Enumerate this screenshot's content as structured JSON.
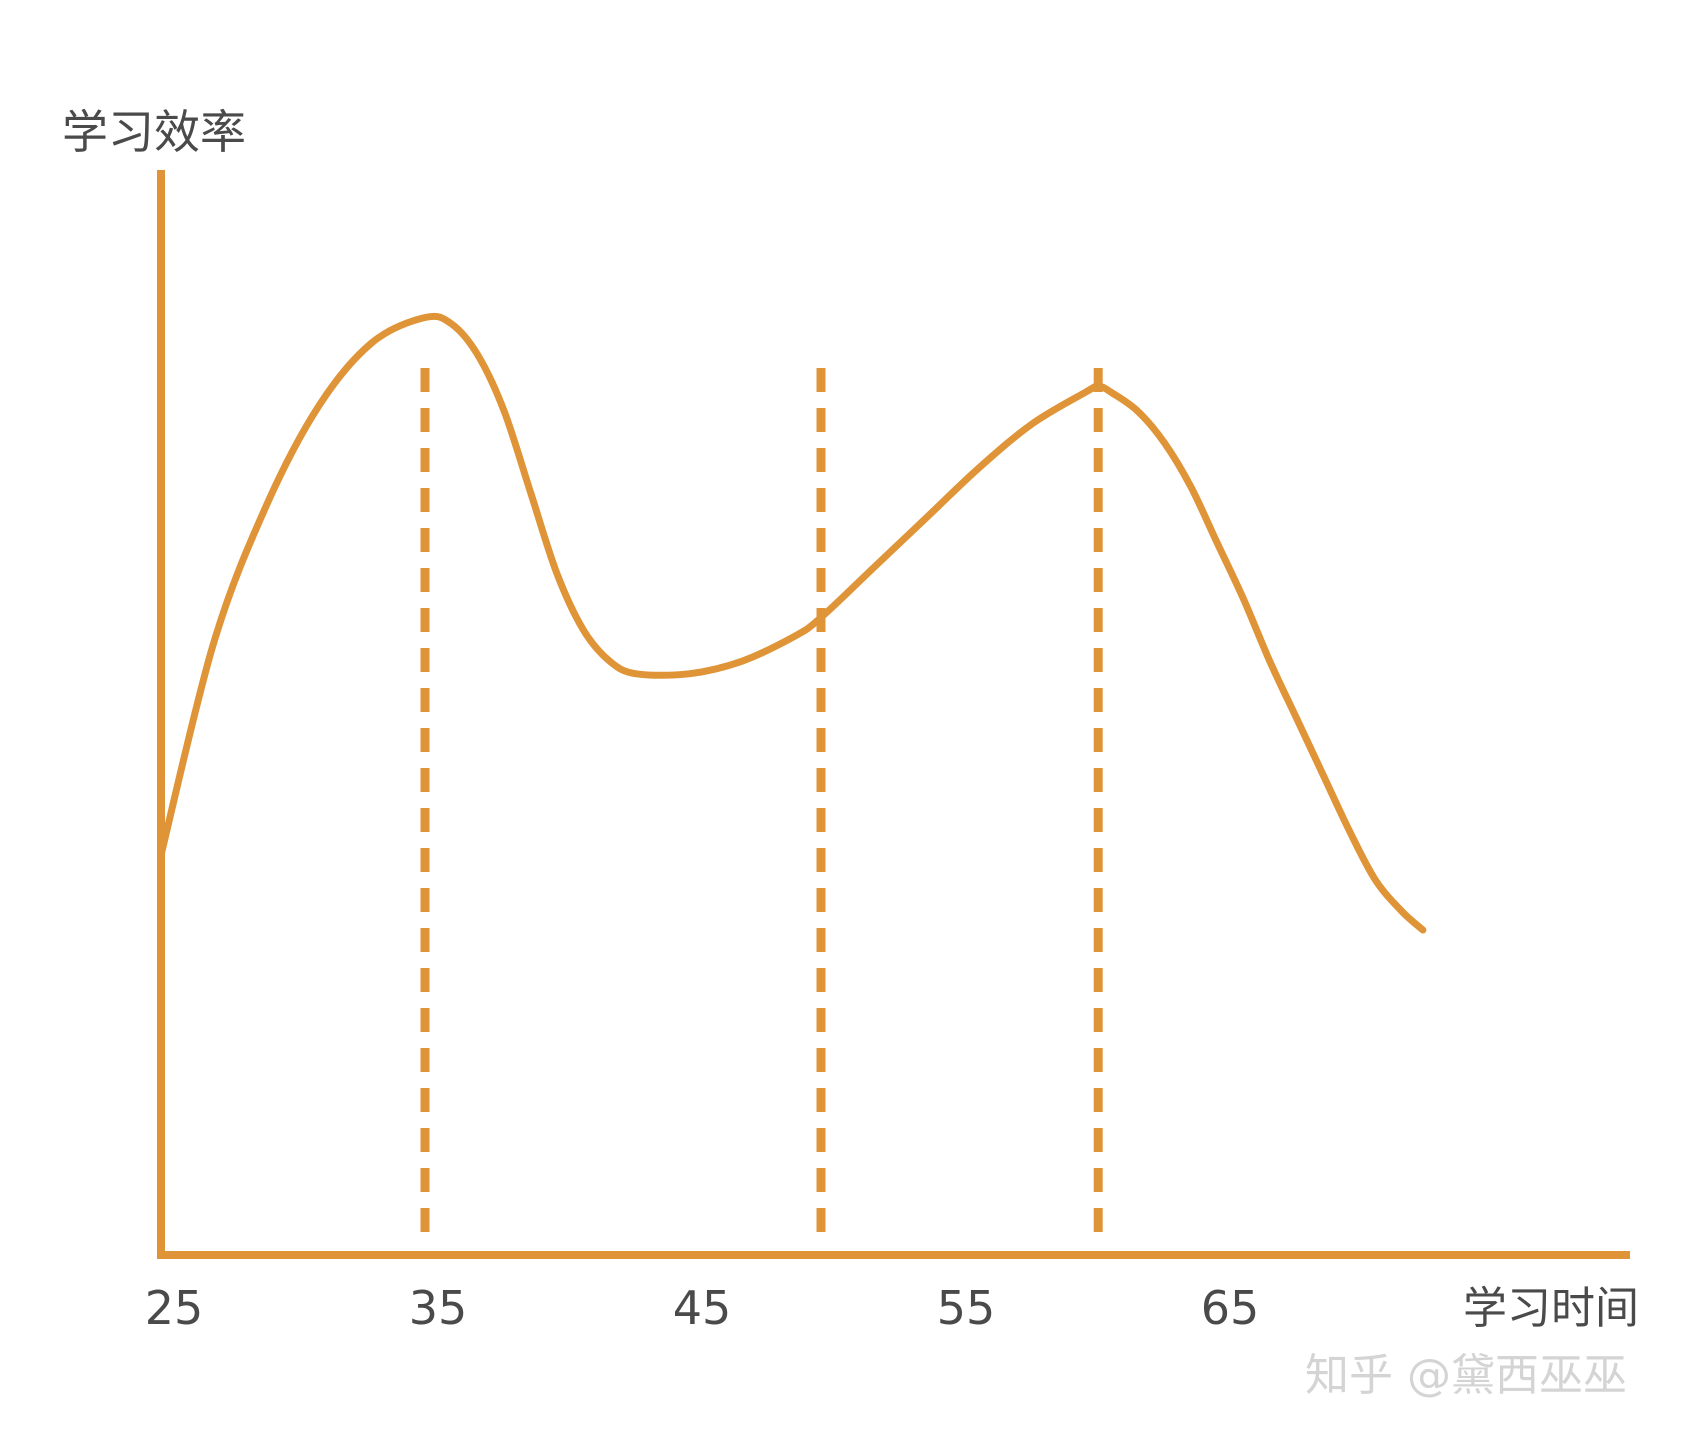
{
  "chart_data": {
    "type": "line",
    "ylabel": "学习效率",
    "xlabel": "学习时间",
    "x_ticks": [
      "25",
      "35",
      "45",
      "55",
      "65"
    ],
    "xlim": [
      25,
      80
    ],
    "ylim": [
      0,
      100
    ],
    "grid": false,
    "colors": {
      "line": "#E09438",
      "axis": "#E09438",
      "text": "#4a4a4a"
    },
    "reference_lines_x": [
      35,
      50,
      60.5
    ],
    "series": [
      {
        "x": [
          25,
          27,
          29,
          31,
          33,
          35,
          36,
          37,
          38,
          39,
          40,
          41,
          42,
          43,
          45,
          47,
          49,
          50,
          52,
          54,
          56,
          58,
          60,
          60.5,
          61,
          62,
          63,
          64,
          65,
          66,
          67,
          68,
          69,
          70,
          71,
          72,
          72.8
        ],
        "y": [
          32,
          49,
          60,
          68,
          73,
          75,
          74.5,
          72,
          67.5,
          61,
          54.5,
          50,
          47.5,
          46.5,
          46.5,
          47.5,
          49.5,
          51,
          55,
          59,
          63,
          66.5,
          69,
          69.5,
          69,
          67.5,
          65,
          61.5,
          57,
          52.5,
          47.5,
          43,
          38.5,
          34,
          30,
          27.5,
          26
        ]
      }
    ]
  },
  "watermark": "知乎 @黛西巫巫"
}
